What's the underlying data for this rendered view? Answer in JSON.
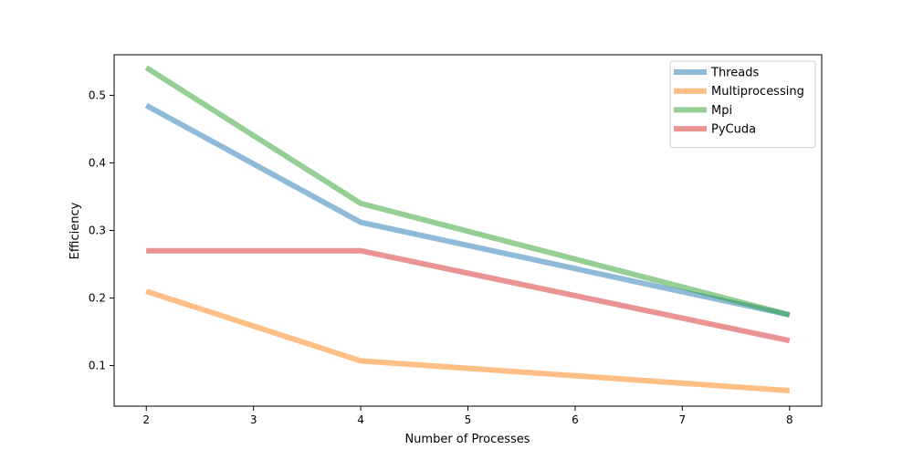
{
  "chart_data": {
    "type": "line",
    "title": "",
    "xlabel": "Number of Processes",
    "ylabel": "Efficiency",
    "xlim": [
      1.7,
      8.3
    ],
    "ylim": [
      0.04,
      0.56
    ],
    "xticks": [
      2,
      3,
      4,
      5,
      6,
      7,
      8
    ],
    "yticks": [
      0.1,
      0.2,
      0.3,
      0.4,
      0.5
    ],
    "xtick_labels": [
      "2",
      "3",
      "4",
      "5",
      "6",
      "7",
      "8"
    ],
    "ytick_labels": [
      "0.1",
      "0.2",
      "0.3",
      "0.4",
      "0.5"
    ],
    "grid": false,
    "legend_position": "top-right",
    "x": [
      2,
      4,
      8
    ],
    "series": [
      {
        "name": "Threads",
        "color": "#1f77b4",
        "values": [
          0.485,
          0.312,
          0.175
        ]
      },
      {
        "name": "Multiprocessing",
        "color": "#ff7f0e",
        "values": [
          0.21,
          0.107,
          0.063
        ]
      },
      {
        "name": "Mpi",
        "color": "#2ca02c",
        "values": [
          0.541,
          0.34,
          0.175
        ]
      },
      {
        "name": "PyCuda",
        "color": "#d62728",
        "values": [
          0.27,
          0.27,
          0.137
        ]
      }
    ]
  }
}
